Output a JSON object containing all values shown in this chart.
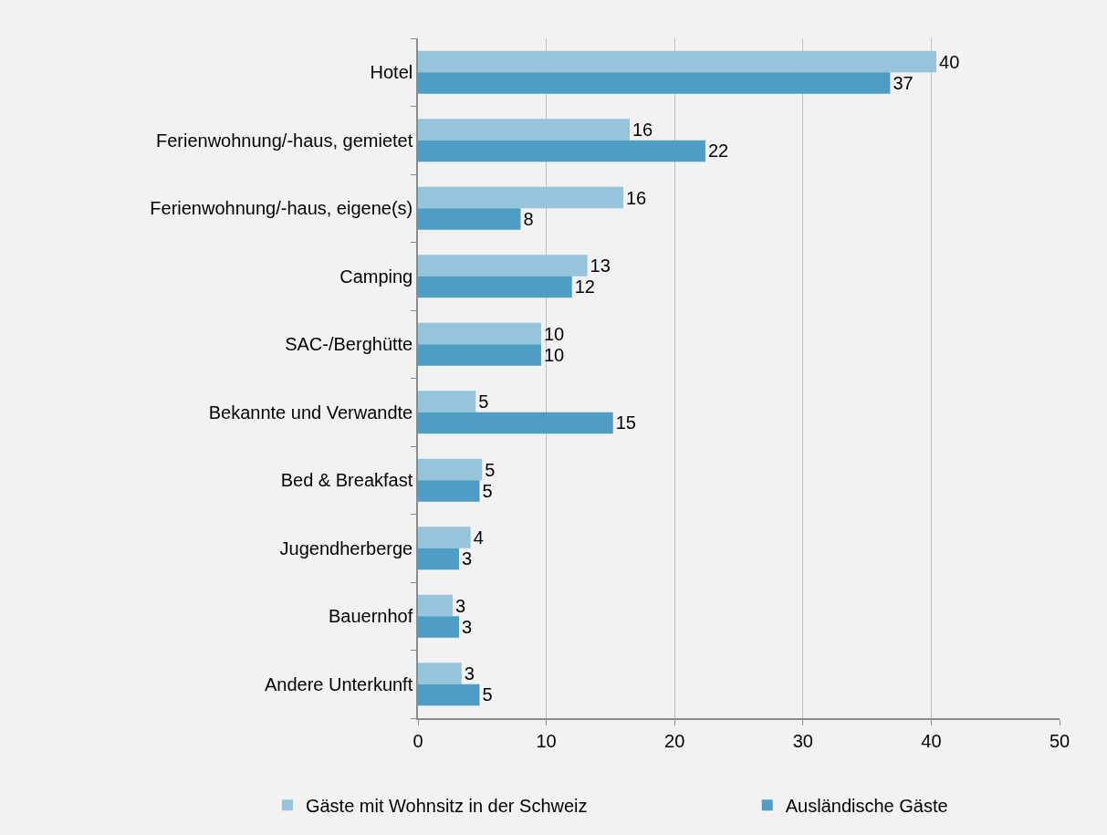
{
  "chart_data": {
    "type": "bar",
    "orientation": "horizontal",
    "categories": [
      "Hotel",
      "Ferienwohnung/-haus, gemietet",
      "Ferienwohnung/-haus, eigene(s)",
      "Camping",
      "SAC-/Berghütte",
      "Bekannte und Verwandte",
      "Bed & Breakfast",
      "Jugendherberge",
      "Bauernhof",
      "Andere Unterkunft"
    ],
    "series": [
      {
        "name": "Gäste mit Wohnsitz in der Schweiz",
        "color": "#95c4db",
        "values": [
          40.4,
          16.5,
          16.0,
          13.2,
          9.6,
          4.5,
          5.0,
          4.1,
          2.7,
          3.4
        ],
        "value_labels": [
          "40",
          "16",
          "16",
          "13",
          "10",
          "5",
          "5",
          "4",
          "3",
          "3"
        ]
      },
      {
        "name": "Ausländische Gäste",
        "color": "#4d9dc4",
        "values": [
          36.8,
          22.4,
          8.0,
          12.0,
          9.6,
          15.2,
          4.8,
          3.2,
          3.2,
          4.8
        ],
        "value_labels": [
          "37",
          "22",
          "8",
          "12",
          "10",
          "15",
          "5",
          "3",
          "3",
          "5"
        ]
      }
    ],
    "xlim": [
      0,
      50
    ],
    "xticks": [
      0,
      10,
      20,
      30,
      40,
      50
    ],
    "grid": "x",
    "legend": "bottom"
  }
}
